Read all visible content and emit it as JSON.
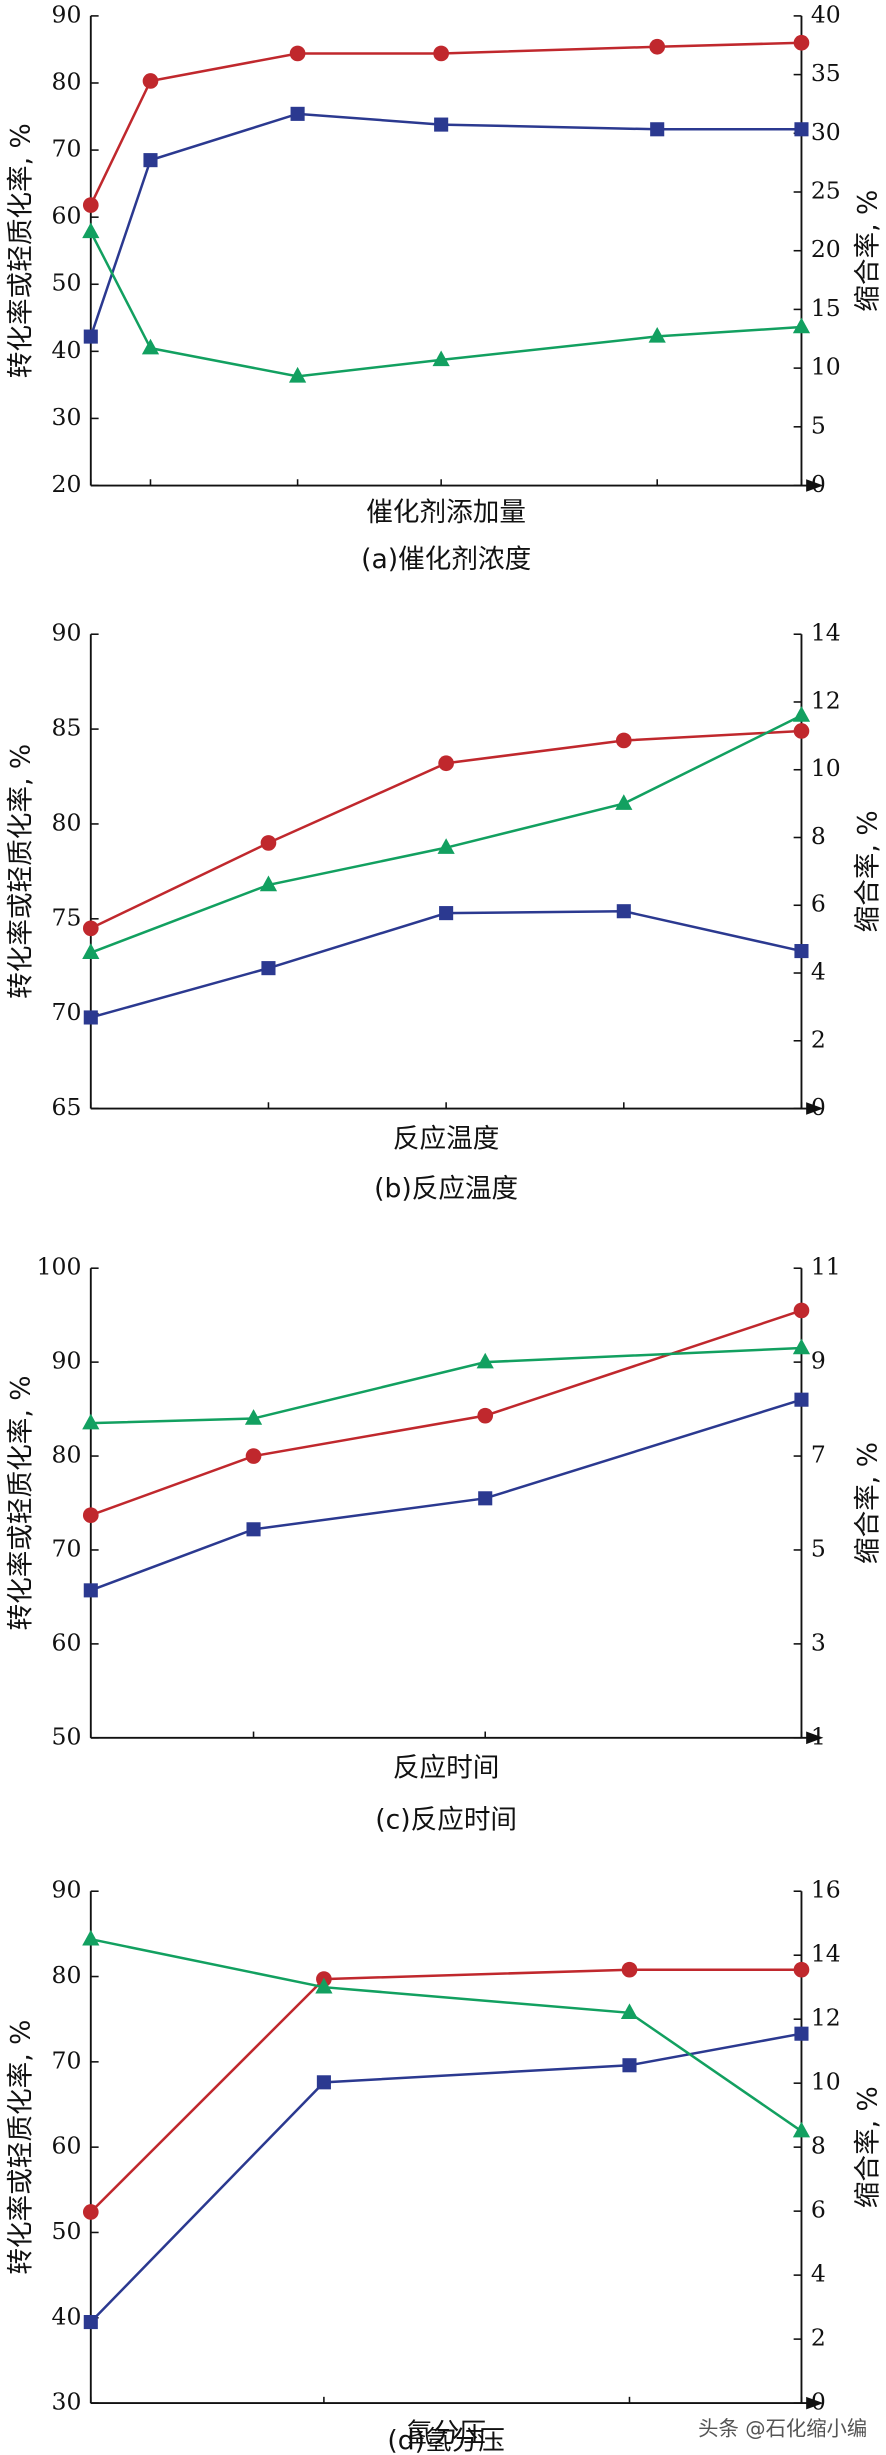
{
  "chart_data": [
    {
      "type": "line",
      "x_label": "催化剂添加量",
      "caption": "(a)催化剂浓度",
      "y_label": "转化率或轻质化率, %",
      "y2_label": "缩合率, %",
      "categories": [
        null,
        null,
        null,
        null,
        null,
        null
      ],
      "ylim": [
        20,
        90
      ],
      "yticks": [
        20,
        30,
        40,
        50,
        60,
        70,
        80,
        90
      ],
      "y2lim": [
        0,
        40
      ],
      "y2ticks": [
        0,
        5,
        10,
        15,
        20,
        25,
        30,
        35,
        40
      ],
      "series": [
        {
          "color": "#c0282d",
          "marker": "circle",
          "axis": "y",
          "values": [
            61.8,
            80.3,
            84.4,
            84.4,
            85.4,
            86.0
          ]
        },
        {
          "color": "#2b3990",
          "marker": "square",
          "axis": "y",
          "values": [
            42.2,
            68.5,
            75.4,
            73.8,
            73.1,
            73.1
          ]
        },
        {
          "color": "#12a060",
          "marker": "triangle",
          "axis": "y2",
          "values": [
            21.6,
            11.7,
            9.3,
            10.7,
            12.7,
            13.5
          ]
        }
      ]
    },
    {
      "type": "line",
      "x_label": "反应温度",
      "caption": "(b)反应温度",
      "y_label": "转化率或轻质化率, %",
      "y2_label": "缩合率, %",
      "categories": [
        null,
        null,
        null,
        null,
        null
      ],
      "ylim": [
        65,
        90
      ],
      "yticks": [
        65,
        70,
        75,
        80,
        85,
        90
      ],
      "y2lim": [
        0,
        14
      ],
      "y2ticks": [
        0,
        2,
        4,
        6,
        8,
        10,
        12,
        14
      ],
      "series": [
        {
          "color": "#c0282d",
          "marker": "circle",
          "axis": "y",
          "values": [
            74.5,
            79.0,
            83.2,
            84.4,
            84.9
          ]
        },
        {
          "color": "#2b3990",
          "marker": "square",
          "axis": "y",
          "values": [
            69.8,
            72.4,
            75.3,
            75.4,
            73.3
          ]
        },
        {
          "color": "#12a060",
          "marker": "triangle",
          "axis": "y2",
          "values": [
            4.6,
            6.6,
            7.7,
            9.0,
            11.6
          ]
        }
      ]
    },
    {
      "type": "line",
      "x_label": "反应时间",
      "caption": "(c)反应时间",
      "y_label": "转化率或轻质化率, %",
      "y2_label": "缩合率, %",
      "categories": [
        null,
        null,
        null,
        null
      ],
      "ylim": [
        50,
        100
      ],
      "yticks": [
        50,
        60,
        70,
        80,
        90,
        100
      ],
      "y2lim": [
        1,
        11
      ],
      "y2ticks": [
        1,
        3,
        5,
        7,
        9,
        11
      ],
      "series": [
        {
          "color": "#c0282d",
          "marker": "circle",
          "axis": "y",
          "values": [
            73.7,
            80.0,
            84.3,
            95.5
          ]
        },
        {
          "color": "#2b3990",
          "marker": "square",
          "axis": "y",
          "values": [
            65.7,
            72.2,
            75.5,
            86.0
          ]
        },
        {
          "color": "#12a060",
          "marker": "triangle",
          "axis": "y2",
          "values": [
            7.7,
            7.8,
            9.0,
            9.3
          ]
        }
      ]
    },
    {
      "type": "line",
      "x_label": "氢分压",
      "caption": "(d)氢分压",
      "y_label": "转化率或轻质化率, %",
      "y2_label": "缩合率, %",
      "categories": [
        null,
        null,
        null,
        null
      ],
      "ylim": [
        30,
        90
      ],
      "yticks": [
        30,
        40,
        50,
        60,
        70,
        80,
        90
      ],
      "y2lim": [
        0,
        16
      ],
      "y2ticks": [
        0,
        2,
        4,
        6,
        8,
        10,
        12,
        14,
        16
      ],
      "series": [
        {
          "color": "#c0282d",
          "marker": "circle",
          "axis": "y",
          "values": [
            52.4,
            79.7,
            80.8,
            80.8
          ]
        },
        {
          "color": "#2b3990",
          "marker": "square",
          "axis": "y",
          "values": [
            39.5,
            67.6,
            69.6,
            73.3
          ]
        },
        {
          "color": "#12a060",
          "marker": "triangle",
          "axis": "y2",
          "values": [
            14.5,
            13.0,
            12.2,
            8.5
          ]
        }
      ]
    }
  ],
  "watermark": "头条 @石化缩小编"
}
